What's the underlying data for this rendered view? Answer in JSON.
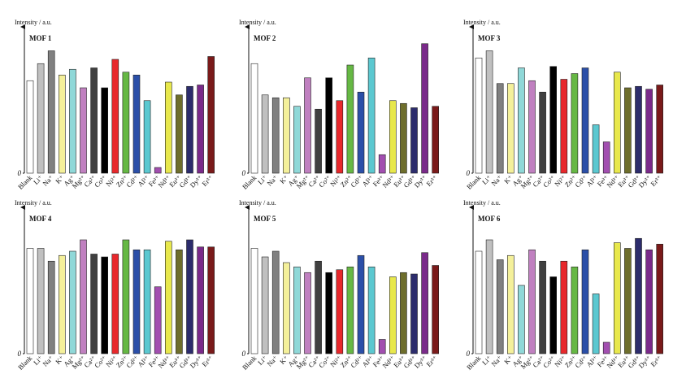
{
  "chart_data": [
    {
      "type": "bar",
      "title": "MOF 1",
      "ylabel": "Intensity / a.u.",
      "ylim": [
        0,
        100
      ],
      "yticks": [
        0
      ],
      "categories": [
        "Blank",
        "Li⁺",
        "Na⁺",
        "K⁺",
        "Ag⁺",
        "Mg²⁺",
        "Ca²⁺",
        "Co²⁺",
        "Ni²⁺",
        "Zn²⁺",
        "Cd²⁺",
        "Al³⁺",
        "Fe³⁺",
        "Nd³⁺",
        "Eu³⁺",
        "Gd³⁺",
        "Dy³⁺",
        "Er³⁺"
      ],
      "colors": [
        "#ffffff",
        "#c0c0c0",
        "#808080",
        "#f4f09a",
        "#8fd8d8",
        "#c080c0",
        "#404040",
        "#000000",
        "#e8282c",
        "#66b844",
        "#2b4fa8",
        "#5bc8d0",
        "#a24fb0",
        "#e8e84c",
        "#6e6e2c",
        "#2c2c6c",
        "#7a2a8a",
        "#7a1a1a"
      ],
      "values": [
        65,
        77,
        86,
        69,
        73,
        60,
        74,
        60,
        80,
        71,
        69,
        51,
        4,
        64,
        55,
        61,
        62,
        82
      ]
    },
    {
      "type": "bar",
      "title": "MOF 2",
      "ylabel": "Intensity / a.u.",
      "ylim": [
        0,
        100
      ],
      "yticks": [
        0
      ],
      "categories": [
        "Blank",
        "Li⁺",
        "Na⁺",
        "K⁺",
        "Ag⁺",
        "Mg²⁺",
        "Ca²⁺",
        "Co²⁺",
        "Ni²⁺",
        "Zn²⁺",
        "Cd²⁺",
        "Al³⁺",
        "Fe³⁺",
        "Nd³⁺",
        "Eu³⁺",
        "Gd³⁺",
        "Dy³⁺",
        "Er³⁺"
      ],
      "colors": [
        "#ffffff",
        "#c0c0c0",
        "#808080",
        "#f4f09a",
        "#8fd8d8",
        "#c080c0",
        "#404040",
        "#000000",
        "#e8282c",
        "#66b844",
        "#2b4fa8",
        "#5bc8d0",
        "#a24fb0",
        "#e8e84c",
        "#6e6e2c",
        "#2c2c6c",
        "#7a2a8a",
        "#7a1a1a"
      ],
      "values": [
        77,
        55,
        53,
        53,
        47,
        67,
        45,
        67,
        51,
        76,
        57,
        81,
        13,
        51,
        49,
        46,
        91,
        47
      ]
    },
    {
      "type": "bar",
      "title": "MOF 3",
      "ylabel": "Intensity / a.u.",
      "ylim": [
        0,
        100
      ],
      "yticks": [
        0
      ],
      "categories": [
        "Blank",
        "Li⁺",
        "Na⁺",
        "K⁺",
        "Ag⁺",
        "Mg²⁺",
        "Ca²⁺",
        "Co²⁺",
        "Ni²⁺",
        "Zn²⁺",
        "Cd²⁺",
        "Al³⁺",
        "Fe³⁺",
        "Nd³⁺",
        "Eu³⁺",
        "Gd³⁺",
        "Dy³⁺",
        "Er³⁺"
      ],
      "colors": [
        "#ffffff",
        "#c0c0c0",
        "#808080",
        "#f4f09a",
        "#8fd8d8",
        "#c080c0",
        "#404040",
        "#000000",
        "#e8282c",
        "#66b844",
        "#2b4fa8",
        "#5bc8d0",
        "#a24fb0",
        "#e8e84c",
        "#6e6e2c",
        "#2c2c6c",
        "#7a2a8a",
        "#7a1a1a"
      ],
      "values": [
        81,
        86,
        63,
        63,
        74,
        65,
        57,
        75,
        66,
        70,
        74,
        34,
        22,
        71,
        60,
        61,
        59,
        62
      ]
    },
    {
      "type": "bar",
      "title": "MOF 4",
      "ylabel": "Intensity / a.u.",
      "ylim": [
        0,
        100
      ],
      "yticks": [
        0
      ],
      "categories": [
        "Blank",
        "Li⁺",
        "Na⁺",
        "K⁺",
        "Ag⁺",
        "Mg²⁺",
        "Ca²⁺",
        "Co²⁺",
        "Ni²⁺",
        "Zn²⁺",
        "Cd²⁺",
        "Al³⁺",
        "Fe³⁺",
        "Nd³⁺",
        "Eu³⁺",
        "Gd³⁺",
        "Dy³⁺",
        "Er³⁺"
      ],
      "colors": [
        "#ffffff",
        "#c0c0c0",
        "#808080",
        "#f4f09a",
        "#8fd8d8",
        "#c080c0",
        "#404040",
        "#000000",
        "#e8282c",
        "#66b844",
        "#2b4fa8",
        "#5bc8d0",
        "#a24fb0",
        "#e8e84c",
        "#6e6e2c",
        "#2c2c6c",
        "#7a2a8a",
        "#7a1a1a"
      ],
      "values": [
        74,
        74,
        65,
        69,
        72,
        80,
        70,
        68,
        70,
        80,
        73,
        73,
        47,
        79,
        73,
        80,
        75,
        75
      ]
    },
    {
      "type": "bar",
      "title": "MOF 5",
      "ylabel": "Intensity / a.u.",
      "ylim": [
        0,
        100
      ],
      "yticks": [
        0
      ],
      "categories": [
        "Blank",
        "Li⁺",
        "Na⁺",
        "K⁺",
        "Ag⁺",
        "Mg²⁺",
        "Ca²⁺",
        "Co²⁺",
        "Ni²⁺",
        "Zn²⁺",
        "Cd²⁺",
        "Al³⁺",
        "Fe³⁺",
        "Nd³⁺",
        "Eu³⁺",
        "Gd³⁺",
        "Dy³⁺",
        "Er³⁺"
      ],
      "colors": [
        "#ffffff",
        "#c0c0c0",
        "#808080",
        "#f4f09a",
        "#8fd8d8",
        "#c080c0",
        "#404040",
        "#000000",
        "#e8282c",
        "#66b844",
        "#2b4fa8",
        "#5bc8d0",
        "#a24fb0",
        "#e8e84c",
        "#6e6e2c",
        "#2c2c6c",
        "#7a2a8a",
        "#7a1a1a"
      ],
      "values": [
        74,
        68,
        72,
        64,
        61,
        57,
        65,
        57,
        59,
        61,
        69,
        61,
        10,
        54,
        57,
        56,
        71,
        62
      ]
    },
    {
      "type": "bar",
      "title": "MOF 6",
      "ylabel": "Intensity / a.u.",
      "ylim": [
        0,
        100
      ],
      "yticks": [
        0
      ],
      "categories": [
        "Blank",
        "Li⁺",
        "Na⁺",
        "K⁺",
        "Ag⁺",
        "Mg²⁺",
        "Ca²⁺",
        "Co²⁺",
        "Ni²⁺",
        "Zn²⁺",
        "Cd²⁺",
        "Al³⁺",
        "Fe³⁺",
        "Nd³⁺",
        "Eu³⁺",
        "Gd³⁺",
        "Dy³⁺",
        "Er³⁺"
      ],
      "colors": [
        "#ffffff",
        "#c0c0c0",
        "#808080",
        "#f4f09a",
        "#8fd8d8",
        "#c080c0",
        "#404040",
        "#000000",
        "#e8282c",
        "#66b844",
        "#2b4fa8",
        "#5bc8d0",
        "#a24fb0",
        "#e8e84c",
        "#6e6e2c",
        "#2c2c6c",
        "#7a2a8a",
        "#7a1a1a"
      ],
      "values": [
        72,
        80,
        66,
        69,
        48,
        73,
        65,
        54,
        65,
        61,
        73,
        42,
        8,
        78,
        74,
        81,
        73,
        77
      ]
    }
  ]
}
